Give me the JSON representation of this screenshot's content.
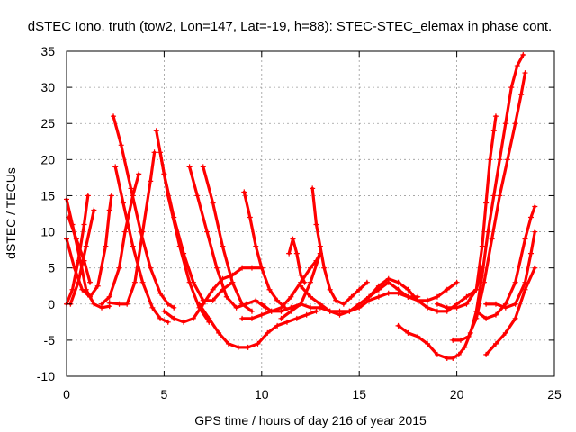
{
  "chart_data": {
    "type": "scatter",
    "title": "dSTEC Iono. truth (tow2, Lon=147, Lat=-19, h=88): STEC-STEC_elemax in phase cont.",
    "xlabel": "GPS time / hours of day 216 of year 2015",
    "ylabel": "dSTEC  / TECUs",
    "xlim": [
      0,
      25
    ],
    "ylim": [
      -10,
      35
    ],
    "xticks": [
      0,
      5,
      10,
      15,
      20,
      25
    ],
    "yticks": [
      -10,
      -5,
      0,
      5,
      10,
      15,
      20,
      25,
      30,
      35
    ],
    "grid": true,
    "marker": "+",
    "color": "#ff0000",
    "series": [
      {
        "points": [
          [
            0.0,
            14.5
          ],
          [
            0.3,
            11
          ],
          [
            0.7,
            6
          ],
          [
            1.0,
            2
          ],
          [
            1.4,
            0
          ],
          [
            1.8,
            -0.5
          ],
          [
            2.2,
            -0.3
          ]
        ]
      },
      {
        "points": [
          [
            0.0,
            0
          ],
          [
            0.3,
            2
          ],
          [
            0.6,
            6
          ],
          [
            0.9,
            11
          ],
          [
            1.1,
            15
          ]
        ]
      },
      {
        "points": [
          [
            0.0,
            9
          ],
          [
            0.4,
            5
          ],
          [
            0.8,
            2
          ],
          [
            1.2,
            1
          ],
          [
            1.6,
            2.5
          ],
          [
            2.0,
            8
          ],
          [
            2.2,
            13
          ],
          [
            2.3,
            15
          ]
        ]
      },
      {
        "points": [
          [
            0.2,
            0
          ],
          [
            0.6,
            3
          ],
          [
            1.0,
            8
          ],
          [
            1.4,
            13
          ]
        ]
      },
      {
        "points": [
          [
            0.1,
            12
          ],
          [
            0.5,
            9
          ],
          [
            0.9,
            6
          ],
          [
            1.2,
            3
          ]
        ]
      },
      {
        "points": [
          [
            2.4,
            26
          ],
          [
            2.8,
            22
          ],
          [
            3.3,
            16
          ],
          [
            3.8,
            10
          ],
          [
            4.3,
            5
          ],
          [
            4.8,
            1.5
          ],
          [
            5.2,
            0
          ],
          [
            5.5,
            -0.5
          ]
        ]
      },
      {
        "points": [
          [
            2.5,
            19
          ],
          [
            2.9,
            14
          ],
          [
            3.4,
            8
          ],
          [
            3.9,
            3
          ],
          [
            4.4,
            -0.5
          ],
          [
            4.8,
            -2
          ],
          [
            5.2,
            -2.5
          ]
        ]
      },
      {
        "points": [
          [
            2.2,
            0.2
          ],
          [
            2.7,
            0
          ],
          [
            3.1,
            0
          ],
          [
            3.5,
            3
          ],
          [
            3.9,
            10
          ],
          [
            4.3,
            17
          ],
          [
            4.5,
            21
          ]
        ]
      },
      {
        "points": [
          [
            1.8,
            0
          ],
          [
            2.2,
            1
          ],
          [
            2.7,
            5
          ],
          [
            3.0,
            10
          ],
          [
            3.4,
            15
          ],
          [
            3.7,
            18
          ]
        ]
      },
      {
        "points": [
          [
            4.6,
            24
          ],
          [
            5.0,
            18
          ],
          [
            5.5,
            12
          ],
          [
            6.0,
            7
          ],
          [
            6.5,
            3
          ],
          [
            7.0,
            0.5
          ],
          [
            7.5,
            0.5
          ],
          [
            8.0,
            2
          ],
          [
            8.5,
            3
          ]
        ]
      },
      {
        "points": [
          [
            4.8,
            21
          ],
          [
            5.2,
            15
          ],
          [
            5.8,
            8
          ],
          [
            6.3,
            3
          ],
          [
            6.8,
            -0.5
          ],
          [
            7.3,
            -2.5
          ]
        ]
      },
      {
        "points": [
          [
            6.3,
            19
          ],
          [
            6.7,
            15
          ],
          [
            7.2,
            10
          ],
          [
            7.7,
            5
          ],
          [
            8.2,
            1
          ],
          [
            8.7,
            -0.5
          ],
          [
            9.2,
            0
          ],
          [
            9.7,
            0.5
          ],
          [
            10.2,
            -0.5
          ]
        ]
      },
      {
        "points": [
          [
            7.0,
            19
          ],
          [
            7.5,
            14
          ],
          [
            8.0,
            8
          ],
          [
            8.5,
            3
          ],
          [
            9.0,
            0
          ],
          [
            9.5,
            -1
          ]
        ]
      },
      {
        "points": [
          [
            5.0,
            -1
          ],
          [
            5.5,
            -2
          ],
          [
            6.0,
            -2.5
          ],
          [
            6.5,
            -2
          ],
          [
            7.0,
            0
          ],
          [
            7.5,
            2
          ],
          [
            8.0,
            3.5
          ],
          [
            8.5,
            4
          ],
          [
            9.0,
            5
          ],
          [
            9.5,
            5
          ],
          [
            10.0,
            5
          ]
        ]
      },
      {
        "points": [
          [
            9.1,
            15.5
          ],
          [
            9.4,
            12
          ],
          [
            9.7,
            8
          ],
          [
            10.0,
            5
          ],
          [
            10.4,
            2
          ],
          [
            10.8,
            0.5
          ],
          [
            11.2,
            -0.5
          ]
        ]
      },
      {
        "points": [
          [
            6.8,
            0
          ],
          [
            7.3,
            -2
          ],
          [
            7.8,
            -4
          ],
          [
            8.3,
            -5.5
          ],
          [
            8.8,
            -6
          ],
          [
            9.3,
            -6
          ],
          [
            9.8,
            -5.5
          ],
          [
            10.3,
            -4
          ],
          [
            10.8,
            -3
          ],
          [
            11.3,
            -2.5
          ],
          [
            11.8,
            -2
          ],
          [
            12.3,
            -1.5
          ],
          [
            12.8,
            -1
          ]
        ]
      },
      {
        "points": [
          [
            10.0,
            0
          ],
          [
            10.5,
            -1
          ],
          [
            11.0,
            -0.5
          ],
          [
            11.5,
            1
          ],
          [
            12.0,
            3
          ],
          [
            12.5,
            5
          ],
          [
            12.8,
            6
          ],
          [
            13.0,
            7
          ]
        ]
      },
      {
        "points": [
          [
            11.0,
            -2
          ],
          [
            11.5,
            -1
          ],
          [
            12.0,
            0
          ],
          [
            12.5,
            3
          ],
          [
            13.0,
            7
          ]
        ]
      },
      {
        "points": [
          [
            11.4,
            7
          ],
          [
            11.6,
            9
          ],
          [
            11.8,
            7
          ],
          [
            12.0,
            4
          ],
          [
            12.2,
            3
          ]
        ]
      },
      {
        "points": [
          [
            12.6,
            16
          ],
          [
            12.8,
            11
          ],
          [
            13.0,
            8
          ],
          [
            13.2,
            5
          ],
          [
            13.5,
            2
          ],
          [
            13.8,
            0.5
          ],
          [
            14.2,
            0
          ],
          [
            14.6,
            1
          ],
          [
            15.0,
            2
          ],
          [
            15.4,
            3
          ]
        ]
      },
      {
        "points": [
          [
            12.0,
            2.5
          ],
          [
            12.5,
            1
          ],
          [
            13.0,
            0
          ],
          [
            13.5,
            -1
          ],
          [
            14.0,
            -1.5
          ],
          [
            14.5,
            -1
          ],
          [
            15.0,
            0
          ],
          [
            15.5,
            1
          ],
          [
            16.0,
            2
          ],
          [
            16.5,
            3
          ],
          [
            17.0,
            2
          ],
          [
            17.5,
            1
          ],
          [
            18.0,
            1
          ]
        ]
      },
      {
        "points": [
          [
            9.0,
            -2
          ],
          [
            9.5,
            -2
          ],
          [
            10.0,
            -1.5
          ],
          [
            10.5,
            -1
          ],
          [
            11.0,
            -1
          ],
          [
            11.5,
            -0.5
          ],
          [
            12.0,
            0
          ],
          [
            12.5,
            -0.5
          ],
          [
            13.0,
            -0.5
          ],
          [
            13.5,
            -1
          ],
          [
            14.0,
            -1
          ],
          [
            14.5,
            -1
          ],
          [
            15.0,
            -0.5
          ],
          [
            15.5,
            0.5
          ],
          [
            16.0,
            1
          ],
          [
            16.5,
            1.5
          ],
          [
            17.0,
            1.5
          ],
          [
            17.5,
            1
          ],
          [
            18.0,
            0.5
          ],
          [
            18.5,
            0.5
          ],
          [
            19.0,
            1
          ],
          [
            19.5,
            2
          ],
          [
            20.0,
            3
          ]
        ]
      },
      {
        "points": [
          [
            15.5,
            1
          ],
          [
            16.0,
            2.5
          ],
          [
            16.5,
            3.5
          ],
          [
            17.0,
            3
          ],
          [
            17.5,
            2
          ],
          [
            18.0,
            0.5
          ],
          [
            18.5,
            -0.5
          ],
          [
            19.0,
            -1
          ],
          [
            19.5,
            -1
          ],
          [
            20.0,
            0
          ],
          [
            20.5,
            1
          ],
          [
            21.0,
            2
          ],
          [
            21.3,
            5
          ]
        ]
      },
      {
        "points": [
          [
            17.0,
            -3
          ],
          [
            17.5,
            -4
          ],
          [
            18.0,
            -4.5
          ],
          [
            18.5,
            -5.5
          ],
          [
            19.0,
            -7
          ],
          [
            19.5,
            -7.5
          ],
          [
            19.8,
            -7.5
          ],
          [
            20.1,
            -7
          ],
          [
            20.4,
            -6
          ],
          [
            20.7,
            -4
          ],
          [
            21.0,
            -1
          ],
          [
            21.3,
            4
          ],
          [
            21.6,
            10
          ],
          [
            21.9,
            15
          ],
          [
            22.2,
            20
          ],
          [
            22.5,
            25
          ],
          [
            22.8,
            30
          ],
          [
            23.1,
            33
          ],
          [
            23.4,
            34.5
          ]
        ]
      },
      {
        "points": [
          [
            19.8,
            -5
          ],
          [
            20.2,
            -5
          ],
          [
            20.6,
            -4.5
          ],
          [
            21.0,
            -2
          ],
          [
            21.4,
            3
          ],
          [
            21.8,
            9
          ],
          [
            22.2,
            15
          ],
          [
            22.6,
            20
          ],
          [
            23.0,
            25
          ],
          [
            23.3,
            29
          ],
          [
            23.5,
            32
          ]
        ]
      },
      {
        "points": [
          [
            19.0,
            0
          ],
          [
            19.5,
            -0.5
          ],
          [
            20.0,
            -0.5
          ],
          [
            20.5,
            0
          ],
          [
            21.0,
            2
          ],
          [
            21.3,
            8
          ],
          [
            21.5,
            14
          ],
          [
            21.7,
            20
          ],
          [
            21.9,
            24
          ],
          [
            22.0,
            26
          ]
        ]
      },
      {
        "points": [
          [
            21.5,
            -7
          ],
          [
            22.0,
            -5.5
          ],
          [
            22.5,
            -4
          ],
          [
            23.0,
            -2
          ],
          [
            23.5,
            2
          ],
          [
            24.0,
            5
          ]
        ]
      },
      {
        "points": [
          [
            21.0,
            -1
          ],
          [
            21.5,
            -2
          ],
          [
            22.0,
            -1.5
          ],
          [
            22.5,
            0
          ],
          [
            23.0,
            3
          ],
          [
            23.5,
            9
          ],
          [
            23.8,
            12
          ],
          [
            24.0,
            13.5
          ]
        ]
      },
      {
        "points": [
          [
            21.5,
            0
          ],
          [
            22.0,
            0
          ],
          [
            22.5,
            -0.5
          ],
          [
            23.0,
            0
          ],
          [
            23.5,
            3
          ],
          [
            23.8,
            7
          ],
          [
            24.0,
            10
          ]
        ]
      }
    ]
  }
}
